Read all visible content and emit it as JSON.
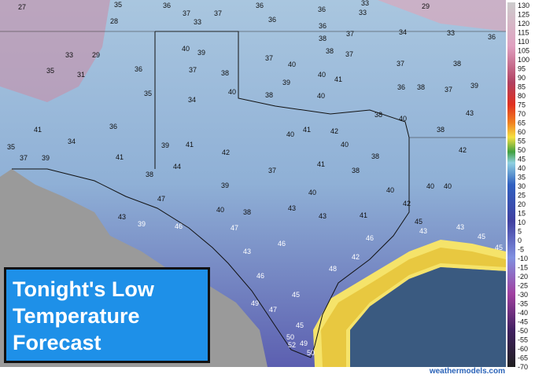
{
  "title_box": {
    "lines": [
      "Tonight's Low",
      "Temperature",
      "Forecast"
    ]
  },
  "color_scale": {
    "labels": [
      130,
      125,
      120,
      115,
      110,
      105,
      100,
      95,
      90,
      85,
      80,
      75,
      70,
      65,
      60,
      55,
      50,
      45,
      40,
      35,
      30,
      25,
      20,
      15,
      10,
      5,
      0,
      -5,
      -10,
      -15,
      -20,
      -25,
      -30,
      -35,
      -40,
      -45,
      -50,
      -55,
      -60,
      -65,
      -70
    ]
  },
  "stations": {
    "values": [
      27,
      35,
      36,
      37,
      33,
      37,
      36,
      33,
      36,
      33,
      29,
      28,
      33,
      29,
      35,
      31,
      36,
      35,
      41,
      34,
      37,
      39,
      35,
      36,
      41,
      39,
      41,
      44,
      42,
      39,
      40,
      38,
      37,
      40,
      41,
      42,
      40,
      41,
      40,
      43,
      43,
      41,
      42,
      48,
      46,
      45,
      43,
      43,
      45,
      45,
      42,
      40,
      40,
      42,
      40,
      38,
      38,
      38,
      40,
      38,
      43,
      36,
      37,
      38,
      37,
      39,
      38,
      36,
      33,
      34,
      37,
      38,
      40,
      41,
      40,
      39,
      40,
      37,
      38,
      39,
      37,
      40,
      34,
      40,
      38,
      39,
      47,
      46,
      47,
      43,
      46,
      46,
      49,
      47,
      45,
      50,
      50,
      52,
      49,
      45,
      43,
      38,
      38,
      36,
      37,
      36
    ]
  },
  "credit": "weathermodels.com"
}
